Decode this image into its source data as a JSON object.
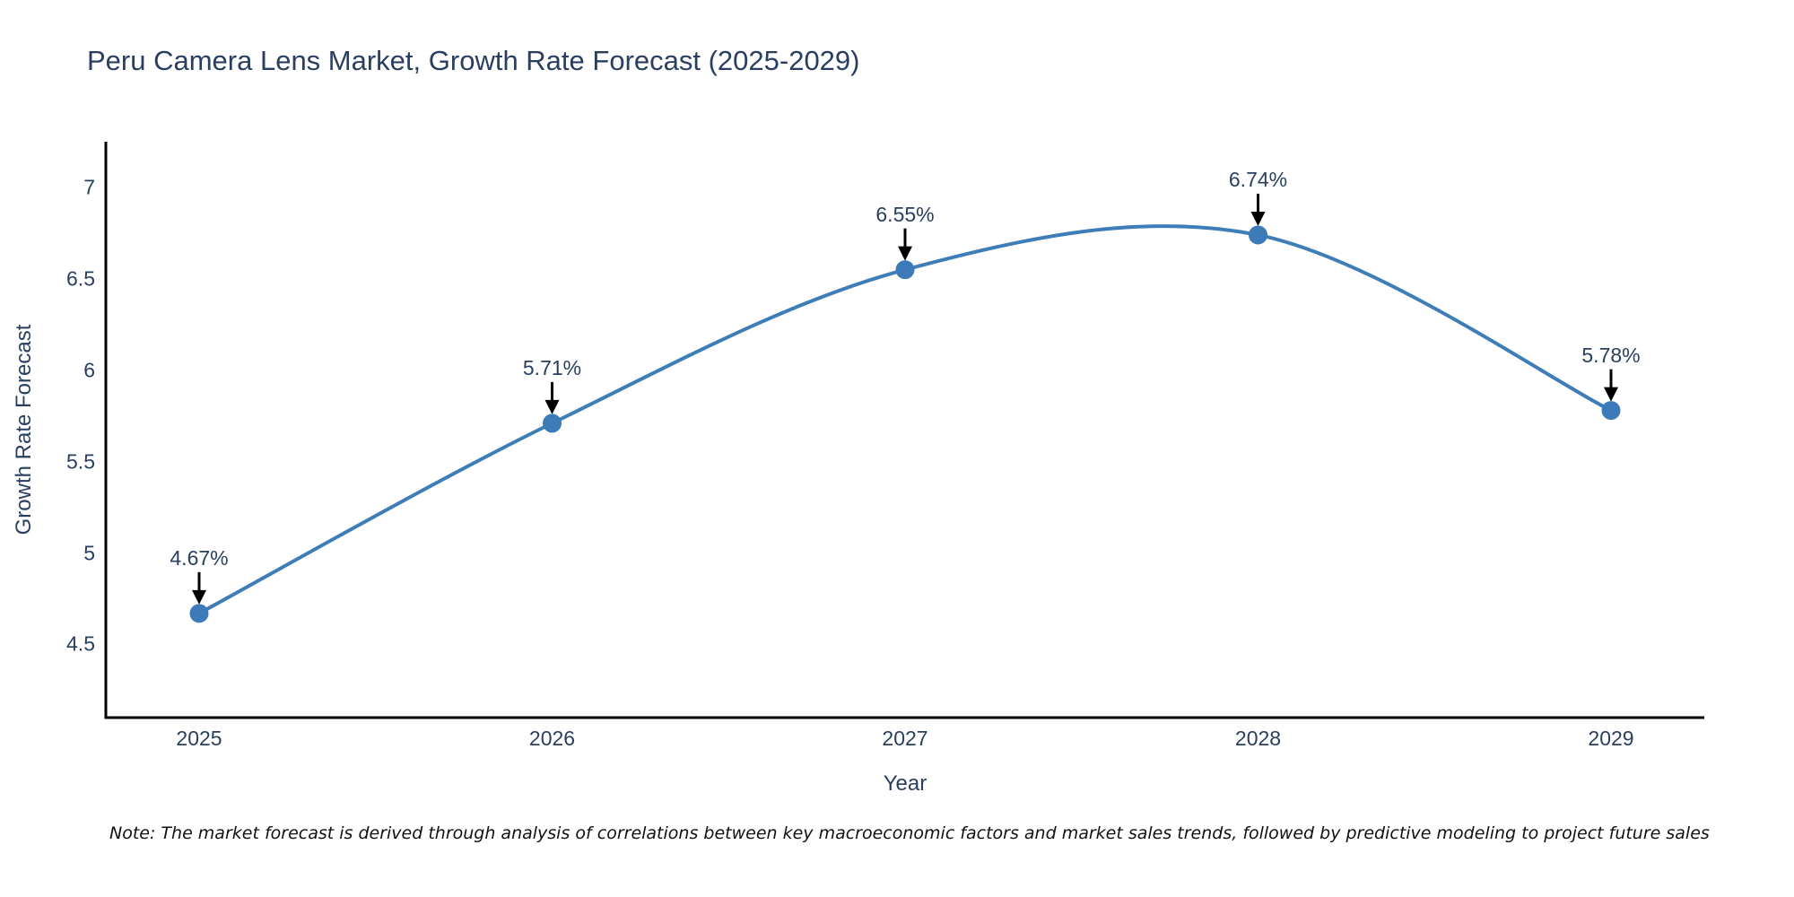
{
  "title": "Peru Camera Lens Market, Growth Rate Forecast (2025-2029)",
  "note": "Note: The market forecast is derived through analysis of correlations between key macroeconomic factors and market sales trends, followed by predictive modeling to project future sales",
  "chart_data": {
    "type": "line",
    "title": "Peru Camera Lens Market, Growth Rate Forecast (2025-2029)",
    "xlabel": "Year",
    "ylabel": "Growth Rate Forecast",
    "x": [
      "2025",
      "2026",
      "2027",
      "2028",
      "2029"
    ],
    "y": [
      4.67,
      5.71,
      6.55,
      6.74,
      5.78
    ],
    "point_labels": [
      "4.67%",
      "5.71%",
      "6.55%",
      "6.74%",
      "5.78%"
    ],
    "yticks": [
      "4.5",
      "5",
      "5.5",
      "6",
      "6.5",
      "7"
    ],
    "ytick_values": [
      4.5,
      5,
      5.5,
      6,
      6.5,
      7
    ],
    "ylim": [
      4.1,
      7.25
    ],
    "grid": false,
    "legend": "none",
    "line_shape": "spline",
    "colors": {
      "line": "#3e7db7",
      "marker": "#3d7ab8",
      "axis_line": "#000000",
      "label_text": "#2a3f5f",
      "arrow": "#000000",
      "note_text": "#111111"
    }
  }
}
